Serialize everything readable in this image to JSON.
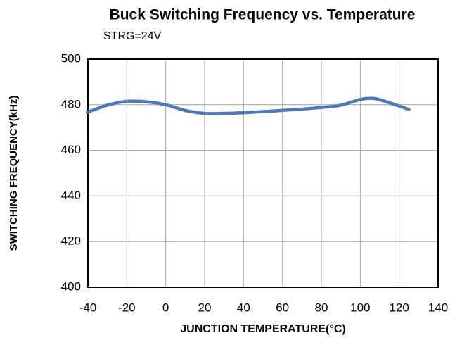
{
  "chart_data": {
    "type": "line",
    "title": "Buck Switching Frequency vs. Temperature",
    "subtitle": "STRG=24V",
    "x_label": "JUNCTION TEMPERATURE(°C)",
    "y_label": "SWITCHING FREQUENCY(kHz)",
    "x": [
      -40,
      -30,
      -20,
      -10,
      0,
      10,
      20,
      30,
      40,
      60,
      80,
      90,
      100,
      105,
      110,
      125
    ],
    "series": [
      {
        "name": "STRG=24V",
        "color": "#4a7ab8",
        "values": [
          476.8,
          479.8,
          481.5,
          481.3,
          480,
          477.5,
          476.2,
          476.2,
          476.5,
          477.5,
          478.8,
          479.8,
          482.3,
          482.8,
          482.2,
          478
        ]
      }
    ],
    "xlim": [
      -40,
      140
    ],
    "xticks": [
      -40,
      -20,
      0,
      20,
      40,
      60,
      80,
      100,
      120,
      140
    ],
    "ylim": [
      400,
      500
    ],
    "yticks": [
      400,
      420,
      440,
      460,
      480,
      500
    ],
    "grid": true
  }
}
